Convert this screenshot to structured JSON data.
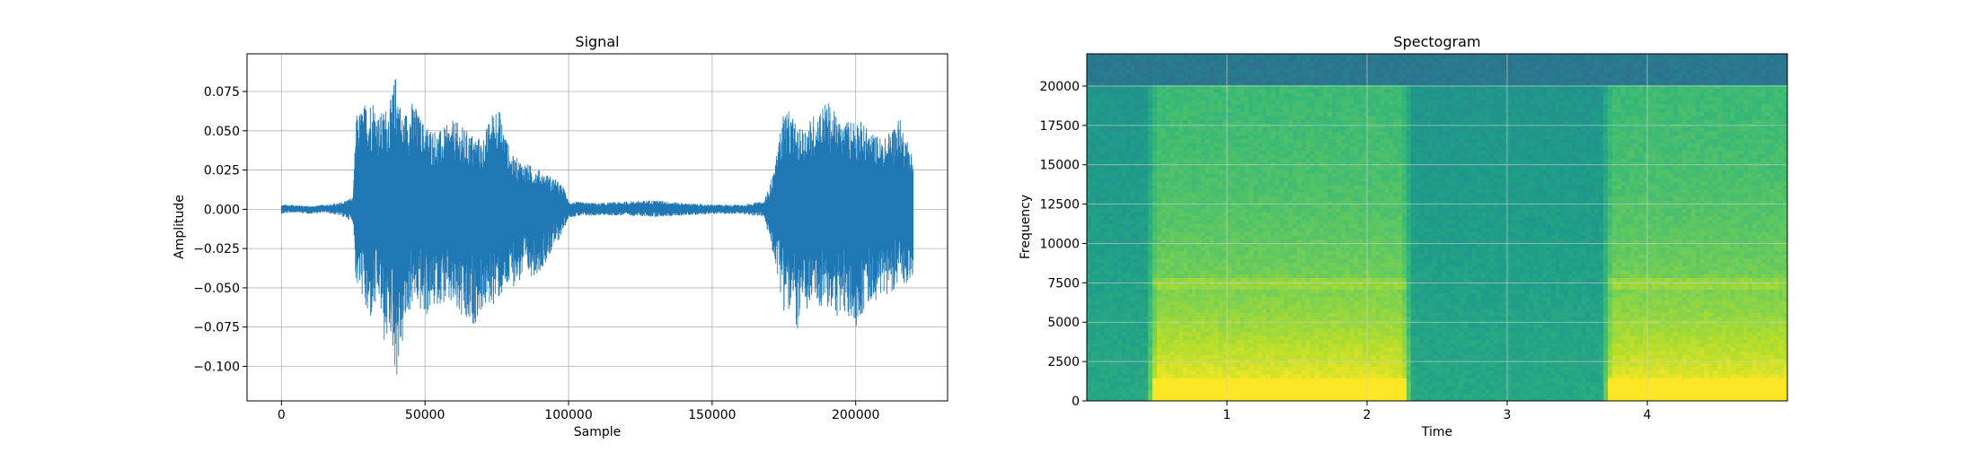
{
  "chart_data": [
    {
      "type": "line",
      "title": "Signal",
      "xlabel": "Sample",
      "ylabel": "Amplitude",
      "xlim": [
        -12000,
        232000
      ],
      "ylim": [
        -0.122,
        0.099
      ],
      "grid": true,
      "x_ticks": [
        0,
        50000,
        100000,
        150000,
        200000
      ],
      "x_tick_labels": [
        "0",
        "50000",
        "100000",
        "150000",
        "200000"
      ],
      "y_ticks": [
        0.075,
        0.05,
        0.025,
        0.0,
        -0.025,
        -0.05,
        -0.075,
        -0.1
      ],
      "y_tick_labels": [
        "0.075",
        "0.050",
        "0.025",
        "0.000",
        "−0.025",
        "−0.050",
        "−0.075",
        "−0.100"
      ],
      "series": [
        {
          "color": "#1f77b4",
          "x": [
            0,
            5000,
            10000,
            15000,
            20000,
            25000,
            26000,
            28000,
            30000,
            32000,
            34000,
            36000,
            38000,
            40000,
            42000,
            44000,
            46000,
            48000,
            50000,
            55000,
            60000,
            65000,
            70000,
            75000,
            80000,
            85000,
            90000,
            95000,
            98000,
            100000,
            110000,
            120000,
            130000,
            140000,
            150000,
            160000,
            168000,
            170000,
            172000,
            175000,
            178000,
            180000,
            185000,
            190000,
            195000,
            200000,
            205000,
            210000,
            215000,
            220000
          ],
          "upper": [
            0.003,
            0.003,
            0.002,
            0.003,
            0.004,
            0.008,
            0.06,
            0.065,
            0.07,
            0.072,
            0.06,
            0.065,
            0.07,
            0.089,
            0.06,
            0.065,
            0.07,
            0.06,
            0.055,
            0.05,
            0.057,
            0.05,
            0.045,
            0.07,
            0.035,
            0.03,
            0.025,
            0.02,
            0.015,
            0.005,
            0.004,
            0.005,
            0.006,
            0.004,
            0.003,
            0.003,
            0.005,
            0.015,
            0.03,
            0.065,
            0.06,
            0.05,
            0.06,
            0.07,
            0.055,
            0.06,
            0.05,
            0.045,
            0.06,
            0.035
          ],
          "lower": [
            -0.003,
            -0.002,
            -0.003,
            -0.002,
            -0.004,
            -0.008,
            -0.05,
            -0.055,
            -0.075,
            -0.07,
            -0.06,
            -0.09,
            -0.08,
            -0.11,
            -0.09,
            -0.07,
            -0.06,
            -0.065,
            -0.07,
            -0.06,
            -0.065,
            -0.08,
            -0.065,
            -0.06,
            -0.05,
            -0.045,
            -0.04,
            -0.025,
            -0.015,
            -0.005,
            -0.004,
            -0.004,
            -0.005,
            -0.004,
            -0.003,
            -0.003,
            -0.005,
            -0.02,
            -0.035,
            -0.065,
            -0.07,
            -0.078,
            -0.06,
            -0.065,
            -0.07,
            -0.075,
            -0.06,
            -0.055,
            -0.05,
            -0.045
          ]
        }
      ]
    },
    {
      "type": "heatmap",
      "title": "Spectogram",
      "xlabel": "Time",
      "ylabel": "Frequency",
      "xlim": [
        0,
        5.0
      ],
      "ylim": [
        0,
        22050
      ],
      "grid": true,
      "colormap": "viridis",
      "x_ticks": [
        1,
        2,
        3,
        4
      ],
      "x_tick_labels": [
        "1",
        "2",
        "3",
        "4"
      ],
      "y_ticks": [
        0,
        2500,
        5000,
        7500,
        10000,
        12500,
        15000,
        17500,
        20000
      ],
      "y_tick_labels": [
        "0",
        "2500",
        "5000",
        "7500",
        "10000",
        "12500",
        "15000",
        "17500",
        "20000"
      ],
      "active_segments": [
        [
          0.5,
          2.25
        ],
        [
          3.75,
          5.0
        ]
      ],
      "lowpass_cutoff": 20000
    }
  ]
}
